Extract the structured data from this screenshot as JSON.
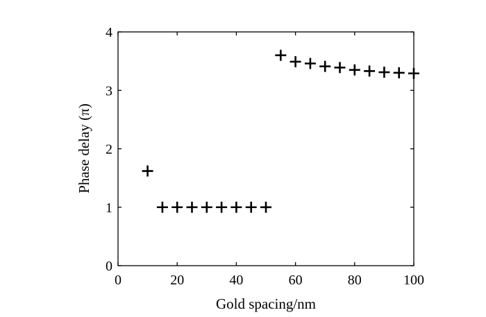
{
  "chart_data": {
    "type": "scatter",
    "title": "",
    "xlabel": "Gold spacing/nm",
    "ylabel": "Phase delay (π)",
    "xlim": [
      0,
      100
    ],
    "ylim": [
      0,
      4
    ],
    "grid": false,
    "marker": "plus",
    "x_ticks": [
      "0",
      "20",
      "40",
      "60",
      "80",
      "100"
    ],
    "y_ticks": [
      "0",
      "1",
      "2",
      "3",
      "4"
    ],
    "series": [
      {
        "x": [
          10,
          15,
          20,
          25,
          30,
          35,
          40,
          45,
          50,
          55,
          60,
          65,
          70,
          75,
          80,
          85,
          90,
          95,
          100
        ],
        "y": [
          1.62,
          1.0,
          1.0,
          1.0,
          1.0,
          1.0,
          1.0,
          1.0,
          1.0,
          3.6,
          3.49,
          3.46,
          3.41,
          3.39,
          3.35,
          3.33,
          3.31,
          3.3,
          3.29
        ]
      }
    ]
  }
}
